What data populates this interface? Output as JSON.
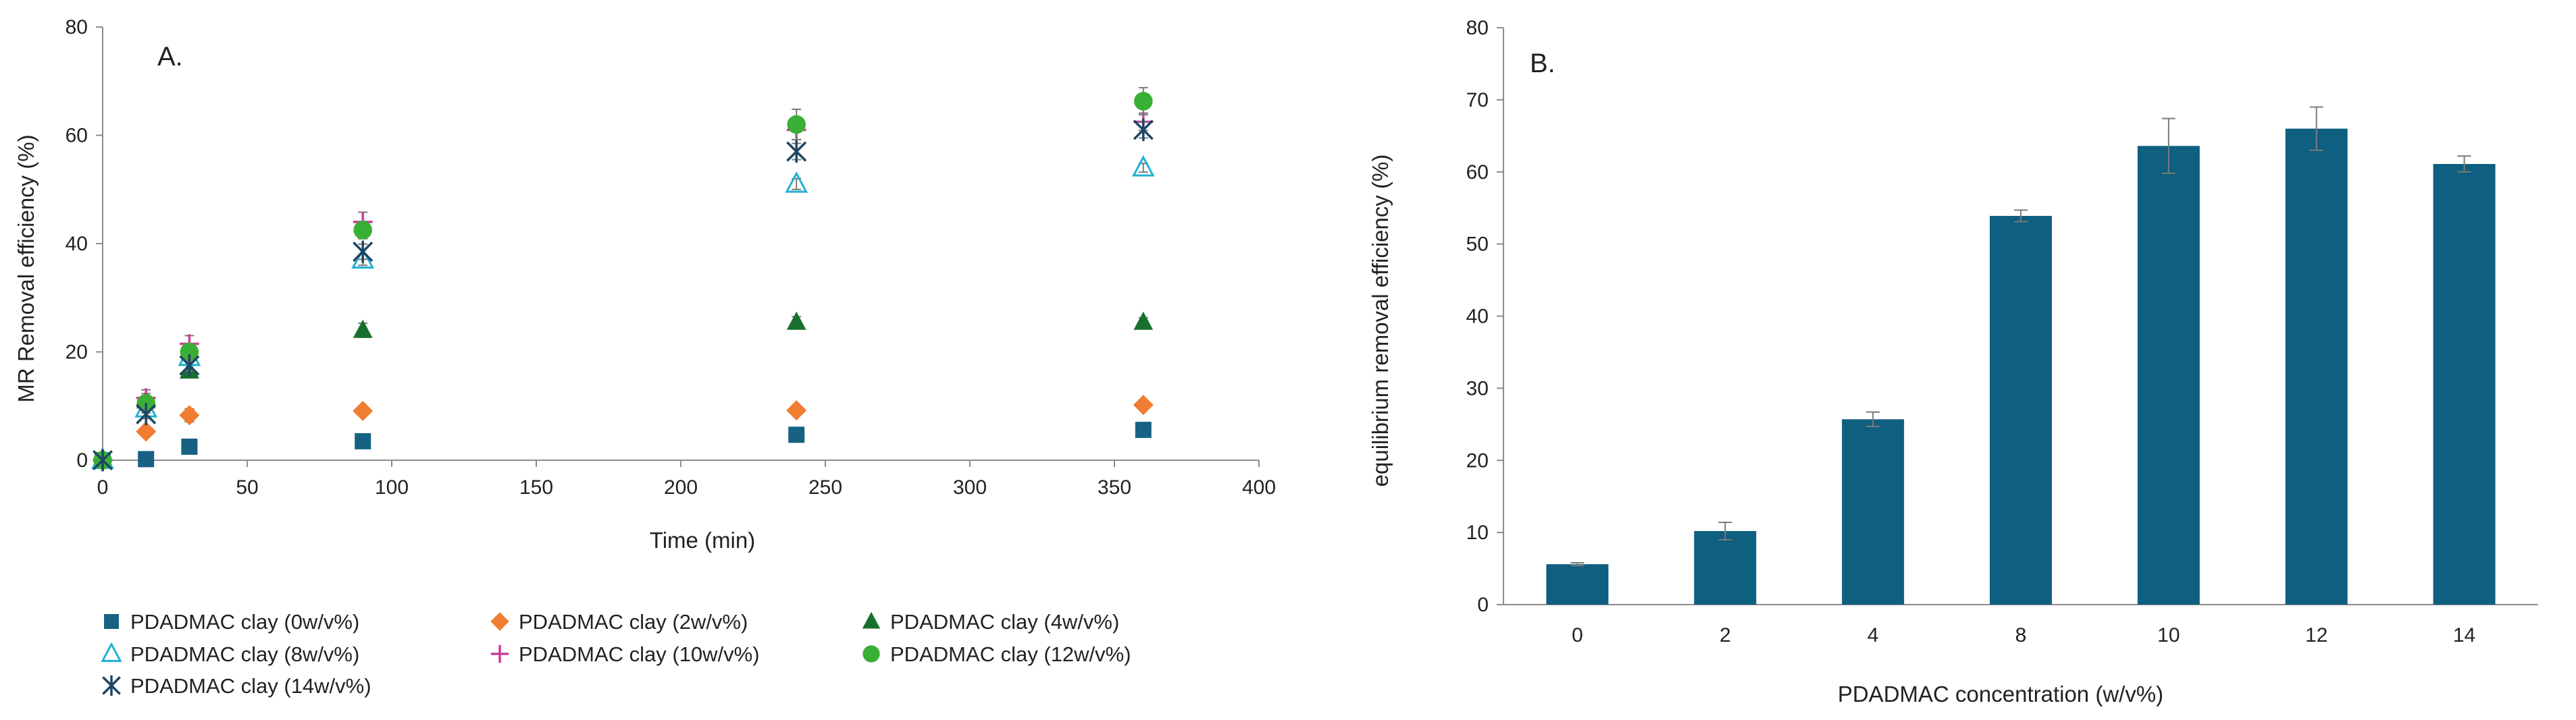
{
  "chart_data": [
    {
      "type": "scatter",
      "panel_label": "A.",
      "title": "",
      "xlabel": "Time (min)",
      "ylabel": "MR Removal efficiency (%)",
      "xlim": [
        0,
        400
      ],
      "ylim": [
        0,
        80
      ],
      "xticks": [
        0,
        50,
        100,
        150,
        200,
        250,
        300,
        350,
        400
      ],
      "yticks": [
        0,
        20,
        40,
        60,
        80
      ],
      "x": [
        0,
        15,
        30,
        90,
        240,
        360
      ],
      "grid": false,
      "legend_position": "bottom",
      "series": [
        {
          "name": "PDADMAC clay (0w/v%)",
          "marker": "square",
          "color": "#176282",
          "values": [
            0,
            0.2,
            2.5,
            3.5,
            4.7,
            5.6
          ],
          "errors": [
            0,
            0.3,
            0.3,
            0.3,
            0.3,
            0.3
          ]
        },
        {
          "name": "PDADMAC clay (2w/v%)",
          "marker": "diamond",
          "color": "#f07d32",
          "values": [
            0,
            5.3,
            8.3,
            9.1,
            9.2,
            10.2
          ],
          "errors": [
            0,
            0.5,
            1.2,
            0.8,
            0.6,
            0.8
          ]
        },
        {
          "name": "PDADMAC clay (4w/v%)",
          "marker": "triangle",
          "color": "#17702d",
          "values": [
            0,
            11,
            16.5,
            24,
            25.5,
            25.5
          ],
          "errors": [
            0,
            1.3,
            1.0,
            1.3,
            1.0,
            0.8
          ]
        },
        {
          "name": "PDADMAC clay (8w/v%)",
          "marker": "triangle-open",
          "color": "#20b1d4",
          "values": [
            0,
            9.5,
            19,
            37,
            51,
            54
          ],
          "errors": [
            0,
            0.8,
            0.8,
            1.0,
            1.0,
            0.8
          ]
        },
        {
          "name": "PDADMAC clay (10w/v%)",
          "marker": "plus",
          "color": "#cc3d9c",
          "values": [
            0,
            11.5,
            21.5,
            44,
            61,
            62.5
          ],
          "errors": [
            0,
            1.5,
            1.5,
            1.8,
            1.8,
            1.6
          ]
        },
        {
          "name": "PDADMAC clay (12w/v%)",
          "marker": "circle",
          "color": "#3aaf36",
          "values": [
            0,
            10.5,
            20,
            42.5,
            62,
            66.3
          ],
          "errors": [
            0,
            1.3,
            1.5,
            1.6,
            2.8,
            2.5
          ]
        },
        {
          "name": "PDADMAC clay (14w/v%)",
          "marker": "asterisk",
          "color": "#1c4665",
          "values": [
            0,
            8.5,
            17.5,
            38.5,
            57,
            61
          ],
          "errors": [
            0,
            0.8,
            1.0,
            1.4,
            1.5,
            1.5
          ]
        }
      ]
    },
    {
      "type": "bar",
      "panel_label": "B.",
      "title": "",
      "xlabel": "PDADMAC concentration (w/v%)",
      "ylabel": "equilibrium removal efficiency (%)",
      "ylim": [
        0,
        80
      ],
      "yticks": [
        0,
        10,
        20,
        30,
        40,
        50,
        60,
        70,
        80
      ],
      "categories": [
        "0",
        "2",
        "4",
        "8",
        "10",
        "12",
        "14"
      ],
      "values": [
        5.6,
        10.2,
        25.7,
        53.9,
        63.6,
        66.0,
        61.1
      ],
      "errors": [
        0.2,
        1.2,
        1.0,
        0.8,
        3.8,
        3.0,
        1.1
      ],
      "color": "#0e5f80",
      "grid": false
    }
  ]
}
